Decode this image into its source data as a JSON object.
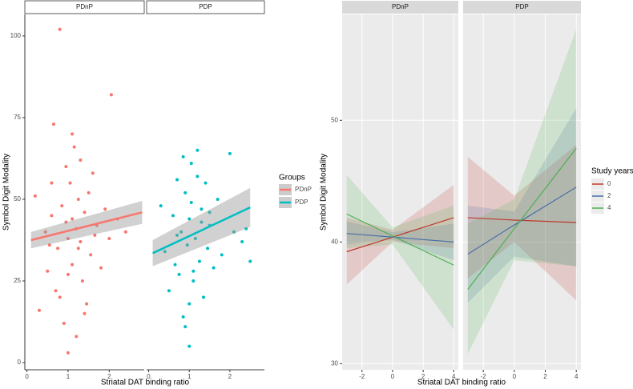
{
  "chart_data": [
    {
      "type": "scatter",
      "x_label": "Striatal DAT binding ratio",
      "y_label": "Symbol Digit Modality",
      "legend_title": "Groups",
      "facets": [
        "PDnP",
        "PDP"
      ],
      "xlim": [
        -0.05,
        2.85
      ],
      "ylim": [
        -2.2,
        106.6
      ],
      "xticks": [
        0,
        1,
        2
      ],
      "yticks": [
        0,
        25,
        50,
        75,
        100
      ],
      "series": [
        {
          "name": "PDnP",
          "color": "#f8766d",
          "x": [
            0.2,
            0.3,
            0.45,
            0.5,
            0.6,
            0.65,
            0.7,
            0.75,
            0.8,
            0.85,
            0.9,
            0.95,
            1.0,
            1.0,
            1.05,
            1.1,
            1.1,
            1.15,
            1.2,
            1.2,
            1.25,
            1.3,
            1.3,
            1.35,
            1.4,
            1.45,
            1.5,
            1.55,
            1.6,
            1.7,
            1.8,
            1.9,
            2.0,
            2.05,
            2.2,
            2.4,
            0.8,
            0.6,
            1.1,
            1.25,
            0.95,
            1.4,
            1.65,
            0.55,
            1.0
          ],
          "values": [
            51,
            16,
            40,
            28,
            45,
            73,
            22,
            35,
            102,
            48,
            12,
            60,
            38,
            3,
            55,
            44,
            30,
            66,
            41,
            8,
            50,
            37,
            62,
            25,
            46,
            18,
            52,
            33,
            58,
            42,
            29,
            47,
            38,
            82,
            44,
            40,
            20,
            55,
            70,
            35,
            43,
            15,
            39,
            36,
            27
          ],
          "fit": {
            "x": [
              0.1,
              2.8
            ],
            "values": [
              37.5,
              46
            ],
            "lower": [
              35,
              42.5
            ],
            "upper": [
              40,
              49.5
            ]
          }
        },
        {
          "name": "PDP",
          "color": "#00bfc4",
          "x": [
            0.3,
            0.4,
            0.5,
            0.6,
            0.65,
            0.7,
            0.75,
            0.8,
            0.85,
            0.9,
            0.95,
            1.0,
            1.0,
            1.05,
            1.1,
            1.15,
            1.2,
            1.25,
            1.3,
            1.35,
            1.4,
            1.45,
            1.5,
            1.6,
            1.7,
            1.8,
            2.0,
            2.1,
            2.3,
            2.5,
            0.85,
            1.0,
            1.3,
            0.7,
            1.1,
            1.2,
            0.9,
            1.5,
            1.05,
            2.4
          ],
          "values": [
            48,
            34,
            22,
            45,
            30,
            56,
            27,
            40,
            14,
            52,
            36,
            5,
            44,
            61,
            25,
            38,
            65,
            31,
            47,
            20,
            55,
            35,
            42,
            29,
            50,
            33,
            64,
            40,
            37,
            31,
            63,
            18,
            43,
            39,
            28,
            57,
            11,
            46,
            49,
            41
          ],
          "fit": {
            "x": [
              0.1,
              2.5
            ],
            "values": [
              33.5,
              47.5
            ],
            "lower": [
              29.5,
              41.5
            ],
            "upper": [
              37.5,
              53.5
            ]
          }
        }
      ]
    },
    {
      "type": "line",
      "x_label": "Striatal DAT binding ratio",
      "y_label": "Symbol Digit Modality",
      "legend_title": "Study years",
      "series_names": [
        "0",
        "2",
        "4"
      ],
      "colors": [
        "#c0392b",
        "#4a6fa5",
        "#4caf50"
      ],
      "xlim": [
        -3.3,
        4.3
      ],
      "ylim": [
        29.5,
        58.7
      ],
      "xticks": [
        -2,
        0,
        2,
        4
      ],
      "yticks": [
        30,
        40,
        50
      ],
      "grid": true,
      "facets": [
        {
          "title": "PDnP",
          "lines": [
            {
              "x": [
                -3,
                0,
                4
              ],
              "values": [
                39.2,
                40.4,
                42.0
              ],
              "lower": [
                36.5,
                40,
                39.5
              ],
              "upper": [
                42,
                41,
                44.7
              ]
            },
            {
              "x": [
                -3,
                0,
                4
              ],
              "values": [
                40.7,
                40.4,
                40.0
              ],
              "lower": [
                39.8,
                40.2,
                38.5
              ],
              "upper": [
                41.7,
                40.8,
                41.5
              ]
            },
            {
              "x": [
                -3,
                0,
                4
              ],
              "values": [
                42.3,
                40.5,
                38.1
              ],
              "lower": [
                39.5,
                39.8,
                32.8
              ],
              "upper": [
                45.5,
                41.2,
                43
              ]
            }
          ]
        },
        {
          "title": "PDP",
          "lines": [
            {
              "x": [
                -3,
                0,
                4
              ],
              "values": [
                42.0,
                41.8,
                41.6
              ],
              "lower": [
                37,
                40,
                35.2
              ],
              "upper": [
                47,
                43.8,
                48
              ]
            },
            {
              "x": [
                -3,
                0,
                4
              ],
              "values": [
                39.0,
                41.4,
                44.5
              ],
              "lower": [
                35,
                38.8,
                38
              ],
              "upper": [
                43,
                42.5,
                51
              ]
            },
            {
              "x": [
                -3,
                0,
                4
              ],
              "values": [
                36.1,
                41.1,
                47.7
              ],
              "lower": [
                30.8,
                38.5,
                38
              ],
              "upper": [
                41.5,
                43.5,
                57.5
              ]
            }
          ]
        }
      ]
    }
  ]
}
